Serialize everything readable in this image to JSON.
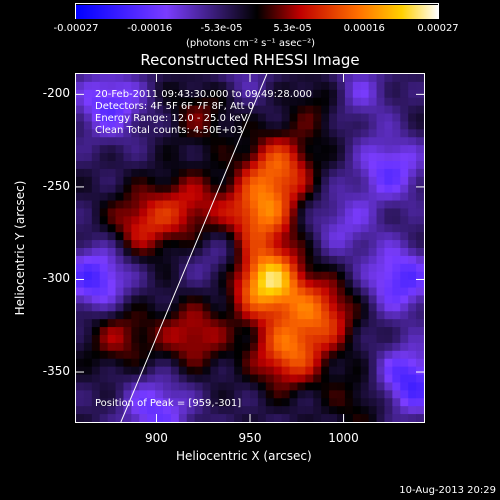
{
  "chart_data": {
    "type": "heatmap",
    "title": "Reconstructed RHESSI Image",
    "xlabel": "Heliocentric X (arcsec)",
    "ylabel": "Heliocentric Y (arcsec)",
    "xlim": [
      857,
      1043
    ],
    "ylim": [
      -377,
      -189
    ],
    "x_ticks": [
      "900",
      "950",
      "1000"
    ],
    "x_tick_values": [
      900,
      950,
      1000
    ],
    "y_ticks": [
      "-200",
      "-250",
      "-300",
      "-350"
    ],
    "y_tick_values": [
      -200,
      -250,
      -300,
      -350
    ],
    "colorbar": {
      "ticks": [
        "-0.00027",
        "-0.00016",
        "-5.3e-05",
        "5.3e-05",
        "0.00016",
        "0.00027"
      ],
      "tick_values": [
        -0.00027,
        -0.00016,
        -5.3e-05,
        5.3e-05,
        0.00016,
        0.00027
      ],
      "range": [
        -0.00027,
        0.00027
      ],
      "unit_label": "(photons cm⁻² s⁻¹ asec⁻²)"
    },
    "annotations": [
      "20-Feb-2011 09:43:30.000 to 09:49:28.000",
      "Detectors: 4F 5F 6F 7F 8F, Att 0",
      "Energy Range: 12.0 - 25.0 keV",
      "Clean     Total counts: 4.50E+03",
      "Position of Peak = [959,-301]"
    ],
    "peak": {
      "x": 959,
      "y": -301
    },
    "limb_line": [
      [
        881,
        -377
      ],
      [
        959,
        -189
      ]
    ],
    "sources": [
      {
        "x": 959,
        "y": -301,
        "value": 0.00027
      },
      {
        "x": 955,
        "y": -265,
        "value": 0.00018
      },
      {
        "x": 965,
        "y": -240,
        "value": 0.00016
      },
      {
        "x": 970,
        "y": -340,
        "value": 0.00017
      },
      {
        "x": 988,
        "y": -318,
        "value": 0.00015
      },
      {
        "x": 918,
        "y": -260,
        "value": 0.0001
      },
      {
        "x": 893,
        "y": -270,
        "value": 0.00012
      },
      {
        "x": 920,
        "y": -330,
        "value": 0.00011
      },
      {
        "x": 990,
        "y": -205,
        "value": 8e-05
      },
      {
        "x": 925,
        "y": -210,
        "value": 7e-05
      },
      {
        "x": 880,
        "y": -330,
        "value": 9e-05
      },
      {
        "x": 1010,
        "y": -365,
        "value": 6e-05
      },
      {
        "x": 1025,
        "y": -240,
        "value": -0.00012
      },
      {
        "x": 1030,
        "y": -300,
        "value": -0.00014
      },
      {
        "x": 1035,
        "y": -355,
        "value": -0.00016
      },
      {
        "x": 875,
        "y": -205,
        "value": -0.00013
      },
      {
        "x": 868,
        "y": -300,
        "value": -0.00015
      },
      {
        "x": 900,
        "y": -370,
        "value": -0.00012
      },
      {
        "x": 935,
        "y": -290,
        "value": -6e-05
      },
      {
        "x": 1000,
        "y": -270,
        "value": -8e-05
      },
      {
        "x": 1005,
        "y": -200,
        "value": -0.0001
      },
      {
        "x": 945,
        "y": -190,
        "value": -5e-05
      }
    ]
  },
  "footer": {
    "timestamp": "10-Aug-2013 20:29"
  }
}
